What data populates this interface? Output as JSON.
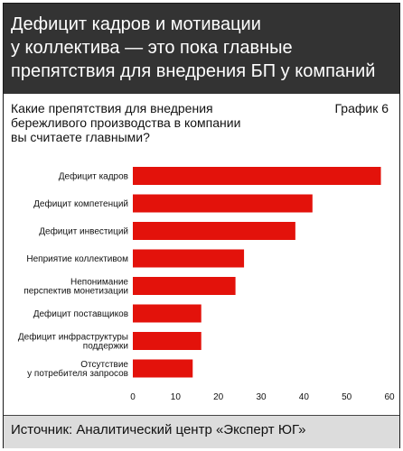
{
  "header": {
    "title": "Дефицит кадров и мотивации\nу коллектива — это пока главные\nпрепятствия для внедрения БП у компаний"
  },
  "question": "Какие препятствия для внедрения\nбережливого производства в компании\nвы считаете главными?",
  "chart_label": "График 6",
  "source": "Источник: Аналитический центр «Эксперт ЮГ»",
  "colors": {
    "bar": "#e3120b",
    "header_bg": "#333333",
    "footer_bg": "#dcdcdc"
  },
  "chart_data": {
    "type": "bar",
    "orientation": "horizontal",
    "categories": [
      [
        "Дефицит кадров"
      ],
      [
        "Дефицит компетенций"
      ],
      [
        "Дефицит инвестиций"
      ],
      [
        "Неприятие коллективом"
      ],
      [
        "Непонимание",
        "перспектив монетизации"
      ],
      [
        "Дефицит поставщиков"
      ],
      [
        "Дефицит инфраструктуры",
        "поддержки"
      ],
      [
        "Отсутствие",
        "у потребителя запросов"
      ]
    ],
    "values": [
      58,
      42,
      38,
      26,
      24,
      16,
      16,
      14
    ],
    "xlim": [
      0,
      60
    ],
    "xticks": [
      0,
      10,
      20,
      30,
      40,
      50,
      60
    ],
    "grid": false,
    "legend": "none"
  }
}
